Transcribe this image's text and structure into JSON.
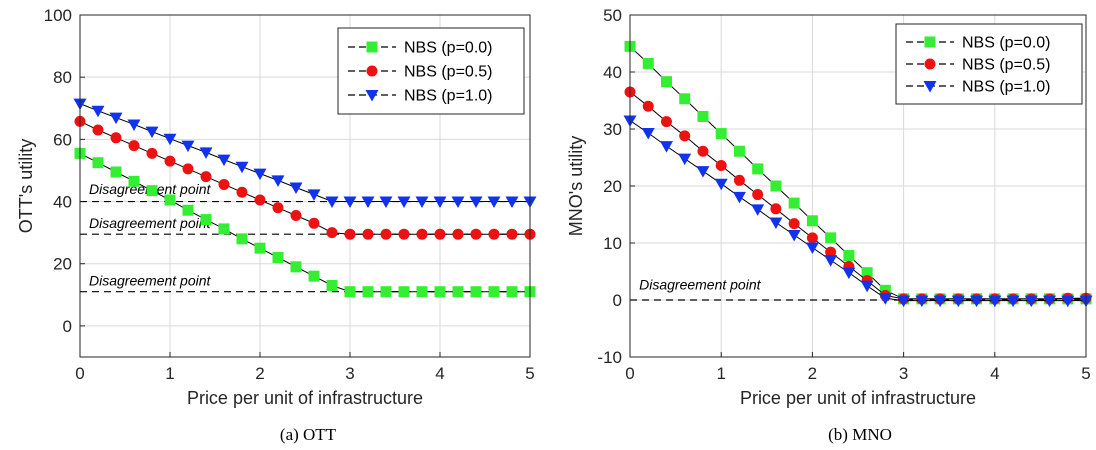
{
  "chart_data": [
    {
      "type": "line",
      "caption": "(a)  OTT",
      "xlabel": "Price per unit of infrastructure",
      "ylabel": "OTT's utility",
      "xlim": [
        0,
        5
      ],
      "ylim": [
        -10,
        100
      ],
      "xticks": [
        "0",
        "1",
        "2",
        "3",
        "4",
        "5"
      ],
      "yticks": [
        "0",
        "20",
        "40",
        "60",
        "80",
        "100"
      ],
      "grid": true,
      "legend_position": "top-right",
      "x": [
        0,
        0.2,
        0.4,
        0.6,
        0.8,
        1.0,
        1.2,
        1.4,
        1.6,
        1.8,
        2.0,
        2.2,
        2.4,
        2.6,
        2.8,
        3.0,
        3.2,
        3.4,
        3.6,
        3.8,
        4.0,
        4.2,
        4.4,
        4.6,
        4.8,
        5.0
      ],
      "series": [
        {
          "name": "NBS (p=0.0)",
          "color": "#33ee33",
          "marker": "square",
          "values": [
            55.5,
            52.5,
            49.5,
            46.5,
            43.5,
            40.5,
            37.2,
            34.2,
            31.2,
            28.0,
            25.0,
            22.0,
            19.0,
            16.0,
            13.0,
            11.0,
            11.0,
            11.0,
            11.0,
            11.0,
            11.0,
            11.0,
            11.0,
            11.0,
            11.0,
            11.0
          ]
        },
        {
          "name": "NBS (p=0.5)",
          "color": "#ee1111",
          "marker": "circle",
          "values": [
            65.8,
            63.0,
            60.5,
            58.0,
            55.5,
            53.0,
            50.5,
            48.0,
            45.5,
            43.0,
            40.5,
            38.0,
            35.5,
            33.0,
            30.0,
            29.5,
            29.5,
            29.5,
            29.5,
            29.5,
            29.5,
            29.5,
            29.5,
            29.5,
            29.5,
            29.5
          ]
        },
        {
          "name": "NBS (p=1.0)",
          "color": "#1133ee",
          "marker": "triangle-down",
          "values": [
            71.5,
            69.2,
            67.0,
            64.8,
            62.5,
            60.2,
            58.0,
            55.8,
            53.5,
            51.2,
            49.0,
            46.8,
            44.5,
            42.3,
            40.0,
            40.0,
            40.0,
            40.0,
            40.0,
            40.0,
            40.0,
            40.0,
            40.0,
            40.0,
            40.0,
            40.0
          ]
        }
      ],
      "annotations": [
        {
          "text": "Disagreement point",
          "y": 40.0,
          "x": 0.1,
          "label_y": 42.5
        },
        {
          "text": "Disagreement point",
          "y": 29.5,
          "x": 0.1,
          "label_y": 31.5
        },
        {
          "text": "Disagreement point",
          "y": 11.0,
          "x": 0.1,
          "label_y": 13.0
        }
      ]
    },
    {
      "type": "line",
      "caption": "(b)  MNO",
      "xlabel": "Price per unit of infrastructure",
      "ylabel": "MNO's utility",
      "xlim": [
        0,
        5
      ],
      "ylim": [
        -10,
        50
      ],
      "xticks": [
        "0",
        "1",
        "2",
        "3",
        "4",
        "5"
      ],
      "yticks": [
        "-10",
        "0",
        "10",
        "20",
        "30",
        "40",
        "50"
      ],
      "grid": true,
      "legend_position": "top-right",
      "x": [
        0,
        0.2,
        0.4,
        0.6,
        0.8,
        1.0,
        1.2,
        1.4,
        1.6,
        1.8,
        2.0,
        2.2,
        2.4,
        2.6,
        2.8,
        3.0,
        3.2,
        3.4,
        3.6,
        3.8,
        4.0,
        4.2,
        4.4,
        4.6,
        4.8,
        5.0
      ],
      "series": [
        {
          "name": "NBS (p=0.0)",
          "color": "#33ee33",
          "marker": "square",
          "values": [
            44.5,
            41.5,
            38.3,
            35.3,
            32.2,
            29.2,
            26.1,
            23.0,
            20.0,
            17.0,
            13.9,
            10.9,
            7.8,
            4.8,
            1.7,
            0.2,
            0.2,
            0.2,
            0.2,
            0.2,
            0.2,
            0.2,
            0.2,
            0.2,
            0.2,
            0.2
          ]
        },
        {
          "name": "NBS (p=0.5)",
          "color": "#ee1111",
          "marker": "circle",
          "values": [
            36.5,
            34.0,
            31.3,
            28.8,
            26.1,
            23.6,
            21.0,
            18.5,
            16.0,
            13.4,
            10.9,
            8.4,
            5.9,
            3.4,
            0.8,
            0.2,
            0.2,
            0.2,
            0.2,
            0.2,
            0.2,
            0.2,
            0.2,
            0.2,
            0.3,
            0.3
          ]
        },
        {
          "name": "NBS (p=1.0)",
          "color": "#1133ee",
          "marker": "triangle-down",
          "values": [
            31.5,
            29.3,
            27.0,
            24.8,
            22.6,
            20.4,
            18.1,
            15.9,
            13.6,
            11.4,
            9.2,
            7.0,
            4.8,
            2.5,
            0.3,
            -0.1,
            -0.1,
            -0.1,
            -0.1,
            -0.1,
            -0.1,
            -0.1,
            -0.1,
            -0.1,
            -0.1,
            -0.1
          ]
        }
      ],
      "annotations": [
        {
          "text": "Disagreement point",
          "y": 0,
          "x": 0.1,
          "label_y": 1.8
        }
      ]
    }
  ]
}
